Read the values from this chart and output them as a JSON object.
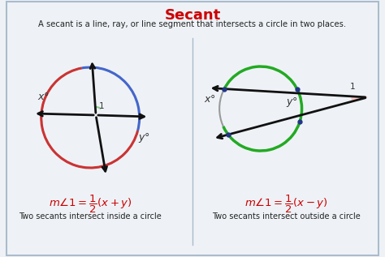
{
  "title": "Secant",
  "title_color": "#cc0000",
  "subtitle": "A secant is a line, ray, or line segment that intersects a circle in two places.",
  "bg_color": "#eef2f6",
  "border_color": "#aabbcc",
  "left_caption": "Two secants intersect inside a circle",
  "right_caption": "Two secants intersect outside a circle",
  "left_formula": "$m\\angle 1=\\dfrac{1}{2}(x+y)$",
  "right_formula": "$m\\angle 1=\\dfrac{1}{2}(x-y)$",
  "formula_color": "#cc0000",
  "circle_color_gray": "#999999",
  "circle_color_red": "#cc3333",
  "circle_color_blue": "#4466cc",
  "circle_color_green": "#22aa22",
  "arrow_color": "#111111",
  "angle_fill_green": "#88cc88",
  "angle_fill_red": "#ffbbbb",
  "dot_color": "#223388"
}
